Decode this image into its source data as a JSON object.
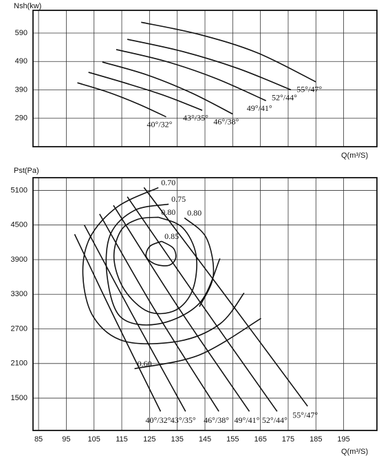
{
  "chart_data": [
    {
      "type": "line",
      "y_label": "Nsh(kw)",
      "x_label": "Q(m³/S)",
      "color": "#111111",
      "grid": true,
      "xlim": [
        83,
        207
      ],
      "ylim": [
        190,
        670
      ],
      "yticks": [
        290,
        390,
        490,
        590
      ],
      "series": [
        {
          "name": "40°/32°",
          "x": [
            99,
            110,
            121,
            131
          ],
          "values": [
            415,
            382,
            340,
            295
          ]
        },
        {
          "name": "43°/35°",
          "x": [
            103,
            117,
            131,
            144
          ],
          "values": [
            452,
            412,
            368,
            318
          ]
        },
        {
          "name": "46°/38°",
          "x": [
            108,
            124,
            140,
            155
          ],
          "values": [
            488,
            443,
            380,
            305
          ]
        },
        {
          "name": "49°/41°",
          "x": [
            113,
            131,
            149,
            167
          ],
          "values": [
            532,
            490,
            430,
            352
          ]
        },
        {
          "name": "52°/44°",
          "x": [
            117,
            137,
            157,
            176
          ],
          "values": [
            568,
            525,
            465,
            390
          ]
        },
        {
          "name": "55°/47°",
          "x": [
            122,
            143,
            164,
            185
          ],
          "values": [
            628,
            585,
            520,
            418
          ]
        }
      ]
    },
    {
      "type": "line",
      "y_label": "Pst(Pa)",
      "x_label": "Q(m³/S)",
      "color": "#111111",
      "grid": true,
      "xlim": [
        83,
        207
      ],
      "ylim": [
        940,
        5320
      ],
      "xticks": [
        85,
        95,
        105,
        115,
        125,
        135,
        145,
        155,
        165,
        175,
        185,
        195
      ],
      "yticks": [
        1500,
        2100,
        2700,
        3300,
        3900,
        4500,
        5100
      ],
      "series": [
        {
          "name": "40°/32°",
          "x": [
            98,
            113,
            129
          ],
          "values": [
            4340,
            2830,
            1270
          ]
        },
        {
          "name": "43°/35°",
          "x": [
            101.5,
            119,
            138
          ],
          "values": [
            4500,
            2930,
            1270
          ]
        },
        {
          "name": "46°/38°",
          "x": [
            107,
            127,
            150
          ],
          "values": [
            4690,
            3020,
            1270
          ]
        },
        {
          "name": "49°/41°",
          "x": [
            112,
            135,
            161
          ],
          "values": [
            4840,
            3100,
            1270
          ]
        },
        {
          "name": "52°/44°",
          "x": [
            117,
            143,
            171
          ],
          "values": [
            4990,
            3180,
            1270
          ]
        },
        {
          "name": "55°/47°",
          "x": [
            123,
            152,
            182
          ],
          "values": [
            5150,
            3300,
            1360
          ]
        }
      ],
      "contours": [
        {
          "name": "0.70",
          "x": [
            128.2,
            113.4,
            103.5,
            101.0,
            104.8,
            115.9,
            135.6,
            150.4,
            159.1
          ],
          "values": [
            5148,
            4814,
            4277,
            3621,
            2905,
            2487,
            2487,
            2786,
            3322
          ]
        },
        {
          "name": "0.75",
          "x": [
            131.9,
            119.6,
            110.9,
            109.7,
            114.6,
            128.2,
            143.0,
            150.4
          ],
          "values": [
            4861,
            4754,
            4337,
            3621,
            2905,
            2786,
            3144,
            3919
          ]
        },
        {
          "name": "0.80",
          "x": [
            128.2,
            136.9,
            141.8,
            140.6,
            134.4,
            124.5,
            115.9,
            112.2,
            114.6,
            120.8,
            128.2
          ],
          "values": [
            4635,
            4456,
            3979,
            3382,
            3024,
            3000,
            3382,
            3919,
            4396,
            4599,
            4635
          ]
        },
        {
          "name": "0.80",
          "x": [
            137.6,
            145.5,
            148.0,
            143.0
          ],
          "values": [
            4623,
            4277,
            3621,
            3084
          ]
        },
        {
          "name": "0.85",
          "x": [
            129.4,
            133.6,
            134.4,
            131.9,
            127.0,
            123.8,
            125.2,
            129.4
          ],
          "values": [
            4217,
            4098,
            3919,
            3800,
            3824,
            3955,
            4134,
            4217
          ]
        },
        {
          "name": "0.60",
          "x": [
            119.6,
            143.0,
            165.2
          ],
          "values": [
            2010,
            2249,
            2881
          ]
        }
      ]
    }
  ]
}
